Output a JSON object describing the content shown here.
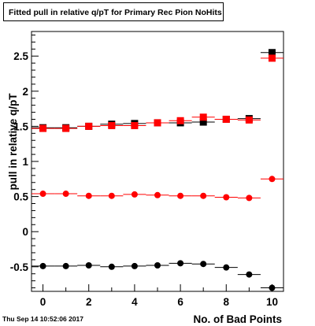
{
  "chart_data": {
    "type": "scatter",
    "title": "Fitted pull in relative q/pT for Primary Rec Pion NoHits",
    "xlabel": "No. of Bad Points",
    "ylabel": "pull in relative q/pT",
    "xlim": [
      -0.5,
      10.5
    ],
    "ylim": [
      -0.85,
      2.85
    ],
    "x_ticks": [
      "0",
      "2",
      "4",
      "6",
      "8",
      "10"
    ],
    "y_ticks": [
      "-0.5",
      "0",
      "0.5",
      "1",
      "1.5",
      "2",
      "2.5"
    ],
    "grid": false,
    "legend": "none",
    "timestamp": "Thu Sep 14 10:52:06 2017",
    "series": [
      {
        "marker": "square",
        "color": "#000000",
        "x": [
          0,
          1,
          2,
          3,
          4,
          5,
          6,
          7,
          8,
          9,
          10
        ],
        "y": [
          1.48,
          1.48,
          1.5,
          1.53,
          1.54,
          1.55,
          1.55,
          1.56,
          1.6,
          1.61,
          2.55
        ]
      },
      {
        "marker": "square",
        "color": "#ff0000",
        "x": [
          0,
          1,
          2,
          3,
          4,
          5,
          6,
          7,
          8,
          9,
          10
        ],
        "y": [
          1.47,
          1.47,
          1.5,
          1.51,
          1.51,
          1.55,
          1.58,
          1.63,
          1.6,
          1.59,
          2.47
        ]
      },
      {
        "marker": "circle",
        "color": "#ff0000",
        "x": [
          0,
          1,
          2,
          3,
          4,
          5,
          6,
          7,
          8,
          9,
          10
        ],
        "y": [
          0.54,
          0.54,
          0.51,
          0.51,
          0.53,
          0.52,
          0.51,
          0.51,
          0.49,
          0.48,
          0.75
        ]
      },
      {
        "marker": "circle",
        "color": "#000000",
        "x": [
          0,
          1,
          2,
          3,
          4,
          5,
          6,
          7,
          8,
          9,
          10
        ],
        "y": [
          -0.49,
          -0.49,
          -0.48,
          -0.5,
          -0.49,
          -0.48,
          -0.45,
          -0.46,
          -0.51,
          -0.61,
          -0.8
        ]
      }
    ]
  }
}
